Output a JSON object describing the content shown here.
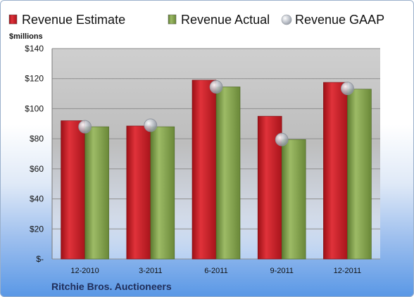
{
  "chart_data": {
    "type": "bar",
    "ylabel": "$millions",
    "categories": [
      "12-2010",
      "3-2011",
      "6-2011",
      "9-2011",
      "12-2011"
    ],
    "series": [
      {
        "name": "Revenue Estimate",
        "kind": "bar",
        "color": "#d9232b",
        "values": [
          92,
          88.5,
          119,
          95,
          117.5
        ]
      },
      {
        "name": "Revenue Actual",
        "kind": "bar",
        "color": "#8cab55",
        "values": [
          88,
          88,
          114.5,
          79.5,
          113
        ]
      },
      {
        "name": "Revenue GAAP",
        "kind": "marker",
        "color": "#b8bcc4",
        "values": [
          88,
          89,
          114.5,
          79.5,
          113.5
        ]
      }
    ],
    "ylim": [
      0,
      140
    ],
    "yticks": [
      0,
      20,
      40,
      60,
      80,
      100,
      120,
      140
    ],
    "ytick_labels": [
      "$-",
      "$20",
      "$40",
      "$60",
      "$80",
      "$100",
      "$120",
      "$140"
    ],
    "grid": true,
    "legend_position": "top"
  },
  "footer": {
    "company": "Ritchie Bros. Auctioneers"
  }
}
